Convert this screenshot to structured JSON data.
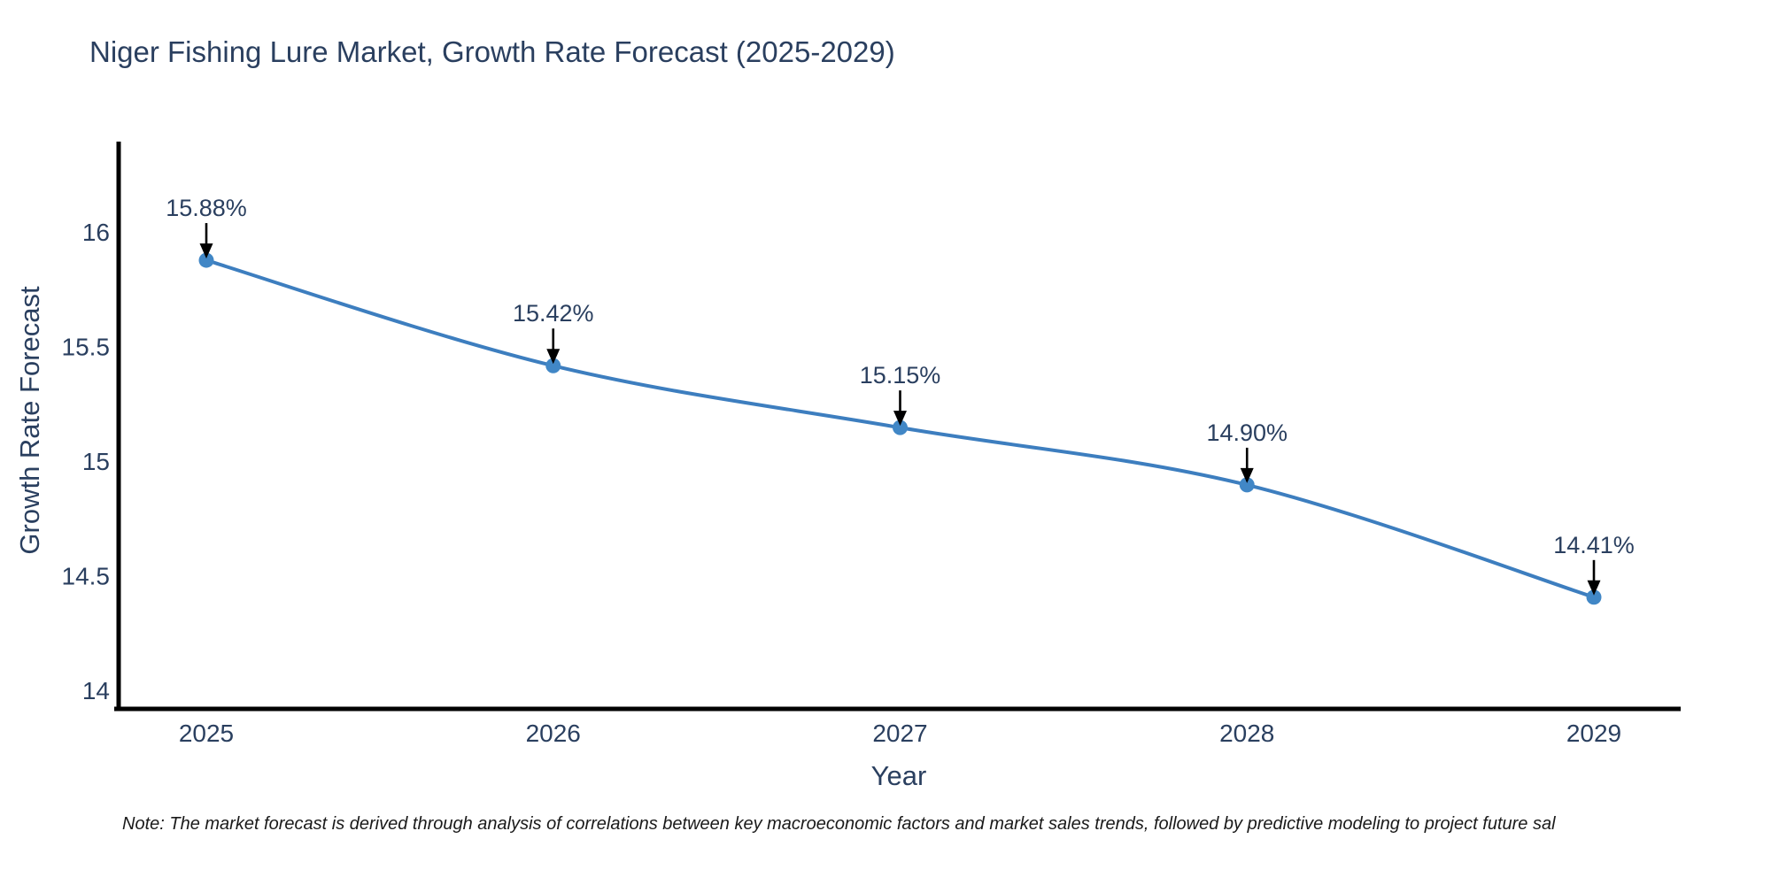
{
  "note": "Note: The market forecast is derived through analysis of correlations between key macroeconomic factors and market sales trends, followed by predictive modeling to project future sal",
  "chart_data": {
    "type": "line",
    "title": "Niger Fishing Lure Market, Growth Rate Forecast (2025-2029)",
    "xlabel": "Year",
    "ylabel": "Growth Rate Forecast",
    "categories": [
      "2025",
      "2026",
      "2027",
      "2028",
      "2029"
    ],
    "series": [
      {
        "name": "Growth Rate Forecast",
        "values": [
          15.88,
          15.42,
          15.15,
          14.9,
          14.41
        ],
        "point_labels": [
          "15.88%",
          "15.42%",
          "15.15%",
          "14.90%",
          "14.41%"
        ]
      }
    ],
    "ytick_values": [
      16,
      15.5,
      15,
      14.5,
      14
    ],
    "ytick_labels": [
      "16",
      "15.5",
      "15",
      "14.5",
      "14"
    ],
    "ylim": [
      13.92,
      16.4
    ],
    "grid": false,
    "legend_position": "none",
    "line_shape": "spline",
    "marker_symbol": "circle",
    "annotation_arrows": true,
    "colors": {
      "line": "#3d7ebf",
      "marker": "#4187c6",
      "axis_line": "#000000",
      "tick_text": "#2a3f5f",
      "annotation_text": "#2a3f5f",
      "arrow": "#000000",
      "note_text": "#1a1a1a",
      "background": "#ffffff"
    }
  }
}
